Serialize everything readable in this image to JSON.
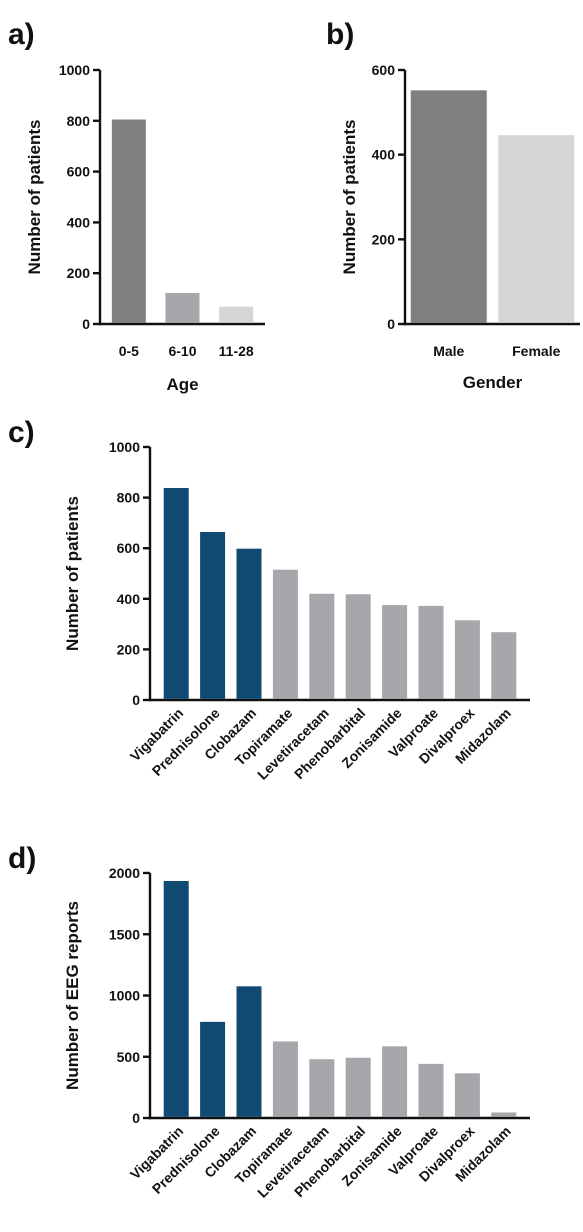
{
  "chart_data": [
    {
      "panel_label": "a)",
      "type": "bar",
      "categories": [
        "0-5",
        "6-10",
        "11-28"
      ],
      "values": [
        805,
        122,
        68
      ],
      "colors": [
        "#808080",
        "#a6a6ab",
        "#d6d6d6"
      ],
      "xlabel": "Age",
      "ylabel": "Number of patients",
      "ylim": [
        0,
        1000
      ],
      "yticks": [
        0,
        200,
        400,
        600,
        800,
        1000
      ],
      "grid": false,
      "legend": "none"
    },
    {
      "panel_label": "b)",
      "type": "bar",
      "categories": [
        "Male",
        "Female"
      ],
      "values": [
        552,
        446
      ],
      "colors": [
        "#808080",
        "#d6d6d6"
      ],
      "xlabel": "Gender",
      "ylabel": "Number of patients",
      "ylim": [
        0,
        600
      ],
      "yticks": [
        0,
        200,
        400,
        600
      ],
      "grid": false,
      "legend": "none"
    },
    {
      "panel_label": "c)",
      "type": "bar",
      "categories": [
        "Vigabatrin",
        "Prednisolone",
        "Clobazam",
        "Topiramate",
        "Levetiracetam",
        "Phenobarbital",
        "Zonisamide",
        "Valproate",
        "Divalproex",
        "Midazolam"
      ],
      "values": [
        838,
        664,
        598,
        515,
        420,
        418,
        375,
        372,
        315,
        268
      ],
      "colors": [
        "#104a73",
        "#104a73",
        "#104a73",
        "#a6a6ab",
        "#a6a6ab",
        "#a6a6ab",
        "#a6a6ab",
        "#a6a6ab",
        "#a6a6ab",
        "#a6a6ab"
      ],
      "xlabel": "",
      "ylabel": "Number of patients",
      "ylim": [
        0,
        1000
      ],
      "yticks": [
        0,
        200,
        400,
        600,
        800,
        1000
      ],
      "grid": false,
      "legend": "none"
    },
    {
      "panel_label": "d)",
      "type": "bar",
      "categories": [
        "Vigabatrin",
        "Prednisolone",
        "Clobazam",
        "Topiramate",
        "Levetiracetam",
        "Phenobarbital",
        "Zonisamide",
        "Valproate",
        "Divalproex",
        "Midazolam"
      ],
      "values": [
        1935,
        785,
        1075,
        625,
        480,
        492,
        585,
        442,
        365,
        45
      ],
      "colors": [
        "#104a73",
        "#104a73",
        "#104a73",
        "#a6a6ab",
        "#a6a6ab",
        "#a6a6ab",
        "#a6a6ab",
        "#a6a6ab",
        "#a6a6ab",
        "#a6a6ab"
      ],
      "xlabel": "",
      "ylabel": "Number of EEG reports",
      "ylim": [
        0,
        2000
      ],
      "yticks": [
        0,
        500,
        1000,
        1500,
        2000
      ],
      "grid": false,
      "legend": "none"
    }
  ]
}
